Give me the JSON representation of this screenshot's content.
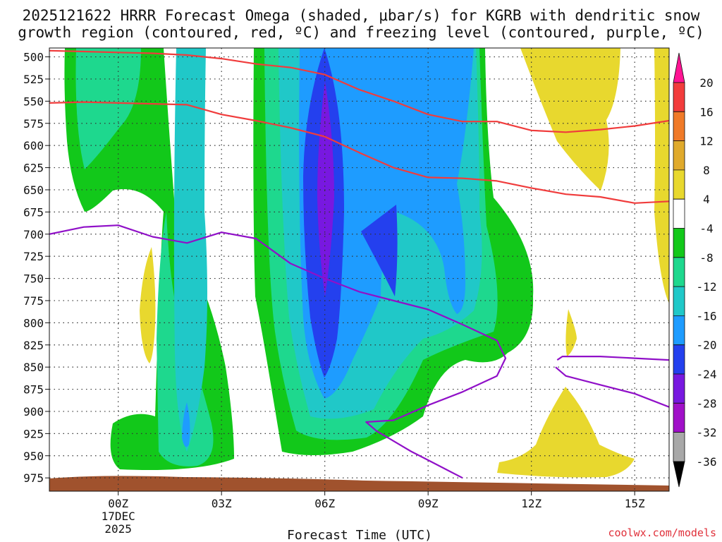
{
  "chart_data": {
    "type": "contour",
    "title_line1": "2025121622 HRRR Forecast Omega (shaded, μbar/s) for KGRB with dendritic snow",
    "title_line2": "growth region (contoured, red, ºC) and freezing level (contoured, purple, ºC)",
    "xlabel": "Forecast Time (UTC)",
    "credit": "coolwx.com/models",
    "y_ticks": [
      500,
      525,
      550,
      575,
      600,
      625,
      650,
      675,
      700,
      725,
      750,
      775,
      800,
      825,
      850,
      875,
      900,
      925,
      950,
      975
    ],
    "y_tick_labels": [
      "500",
      "525",
      "550",
      "575",
      "600",
      "625",
      "650",
      "675",
      "700",
      "725",
      "750",
      "775",
      "800",
      "825",
      "850",
      "875",
      "900",
      "925",
      "950",
      "975"
    ],
    "ylim_hpa": [
      490,
      990
    ],
    "xlim_hours_from_00z": [
      -2,
      16
    ],
    "x_ticks": [
      {
        "hour": 0,
        "label": "00Z",
        "sub1": "17DEC",
        "sub2": "2025"
      },
      {
        "hour": 3,
        "label": "03Z",
        "sub1": "",
        "sub2": ""
      },
      {
        "hour": 6,
        "label": "06Z",
        "sub1": "",
        "sub2": ""
      },
      {
        "hour": 9,
        "label": "09Z",
        "sub1": "",
        "sub2": ""
      },
      {
        "hour": 12,
        "label": "12Z",
        "sub1": "",
        "sub2": ""
      },
      {
        "hour": 15,
        "label": "15Z",
        "sub1": "",
        "sub2": ""
      }
    ],
    "colorbar": {
      "levels": [
        "20",
        "16",
        "12",
        "8",
        "4",
        "-4",
        "-8",
        "-12",
        "-16",
        "-20",
        "-24",
        "-28",
        "-32",
        "-36"
      ],
      "colors": [
        "#ff1493",
        "#f23c3c",
        "#f07a28",
        "#e0aa2c",
        "#e8d82e",
        "#ffffff",
        "#12c81a",
        "#1ed88e",
        "#20c8c8",
        "#1e9cff",
        "#2440ee",
        "#7818e0",
        "#a010c8",
        "#a8a8a8",
        "#000000"
      ]
    },
    "shading": {
      "colors": {
        "green": "#12c81a",
        "seagreen": "#1ed88e",
        "cyan": "#20c8c8",
        "blue": "#1e9cff",
        "darkblue": "#2440ee",
        "violet": "#7818e0",
        "yellow": "#e8d82e",
        "ground": "#a0522d"
      }
    },
    "dgz_lines_color": "#f03c3c",
    "dgz_lines": [
      {
        "name": "dendritic-upper-boundary",
        "points": [
          [
            -2,
            493
          ],
          [
            -1,
            494
          ],
          [
            0,
            495
          ],
          [
            1,
            496
          ],
          [
            2,
            498
          ],
          [
            3,
            502
          ],
          [
            4,
            508
          ],
          [
            5,
            512
          ],
          [
            6,
            520
          ],
          [
            7,
            537
          ],
          [
            8,
            550
          ],
          [
            9,
            565
          ],
          [
            10,
            573
          ],
          [
            11,
            573
          ],
          [
            12,
            583
          ],
          [
            13,
            585
          ],
          [
            14,
            582
          ],
          [
            15,
            578
          ],
          [
            16,
            572
          ]
        ]
      },
      {
        "name": "dendritic-lower-boundary",
        "points": [
          [
            -2,
            552
          ],
          [
            -1,
            551
          ],
          [
            0,
            552
          ],
          [
            1,
            553
          ],
          [
            2,
            554
          ],
          [
            3,
            565
          ],
          [
            4,
            572
          ],
          [
            5,
            580
          ],
          [
            6,
            590
          ],
          [
            7,
            608
          ],
          [
            8,
            625
          ],
          [
            9,
            636
          ],
          [
            10,
            637
          ],
          [
            11,
            640
          ],
          [
            12,
            648
          ],
          [
            13,
            655
          ],
          [
            14,
            658
          ],
          [
            15,
            665
          ],
          [
            16,
            663
          ]
        ]
      }
    ],
    "freezing_lines_color": "#9010c8",
    "freezing_lines": [
      {
        "name": "freezing-level-main",
        "points": [
          [
            -2,
            700
          ],
          [
            -1,
            692
          ],
          [
            0,
            690
          ],
          [
            1,
            703
          ],
          [
            2,
            710
          ],
          [
            3,
            698
          ],
          [
            4,
            705
          ],
          [
            5,
            733
          ],
          [
            6,
            750
          ],
          [
            7,
            765
          ],
          [
            8,
            775
          ],
          [
            9,
            785
          ],
          [
            10,
            802
          ],
          [
            11,
            820
          ],
          [
            11.25,
            840
          ],
          [
            11,
            860
          ],
          [
            10,
            878
          ],
          [
            9,
            893
          ],
          [
            8,
            910
          ],
          [
            7.2,
            912
          ],
          [
            7.5,
            922
          ],
          [
            8.5,
            945
          ],
          [
            9,
            955
          ],
          [
            10,
            975
          ]
        ]
      },
      {
        "name": "freezing-level-right",
        "points": [
          [
            12.75,
            842
          ],
          [
            12.9,
            838
          ],
          [
            14,
            838
          ],
          [
            15,
            840
          ],
          [
            16,
            842
          ]
        ]
      },
      {
        "name": "freezing-level-lower-right",
        "points": [
          [
            12.7,
            850
          ],
          [
            13,
            860
          ],
          [
            14,
            870
          ],
          [
            15,
            880
          ],
          [
            16,
            895
          ]
        ]
      }
    ]
  }
}
